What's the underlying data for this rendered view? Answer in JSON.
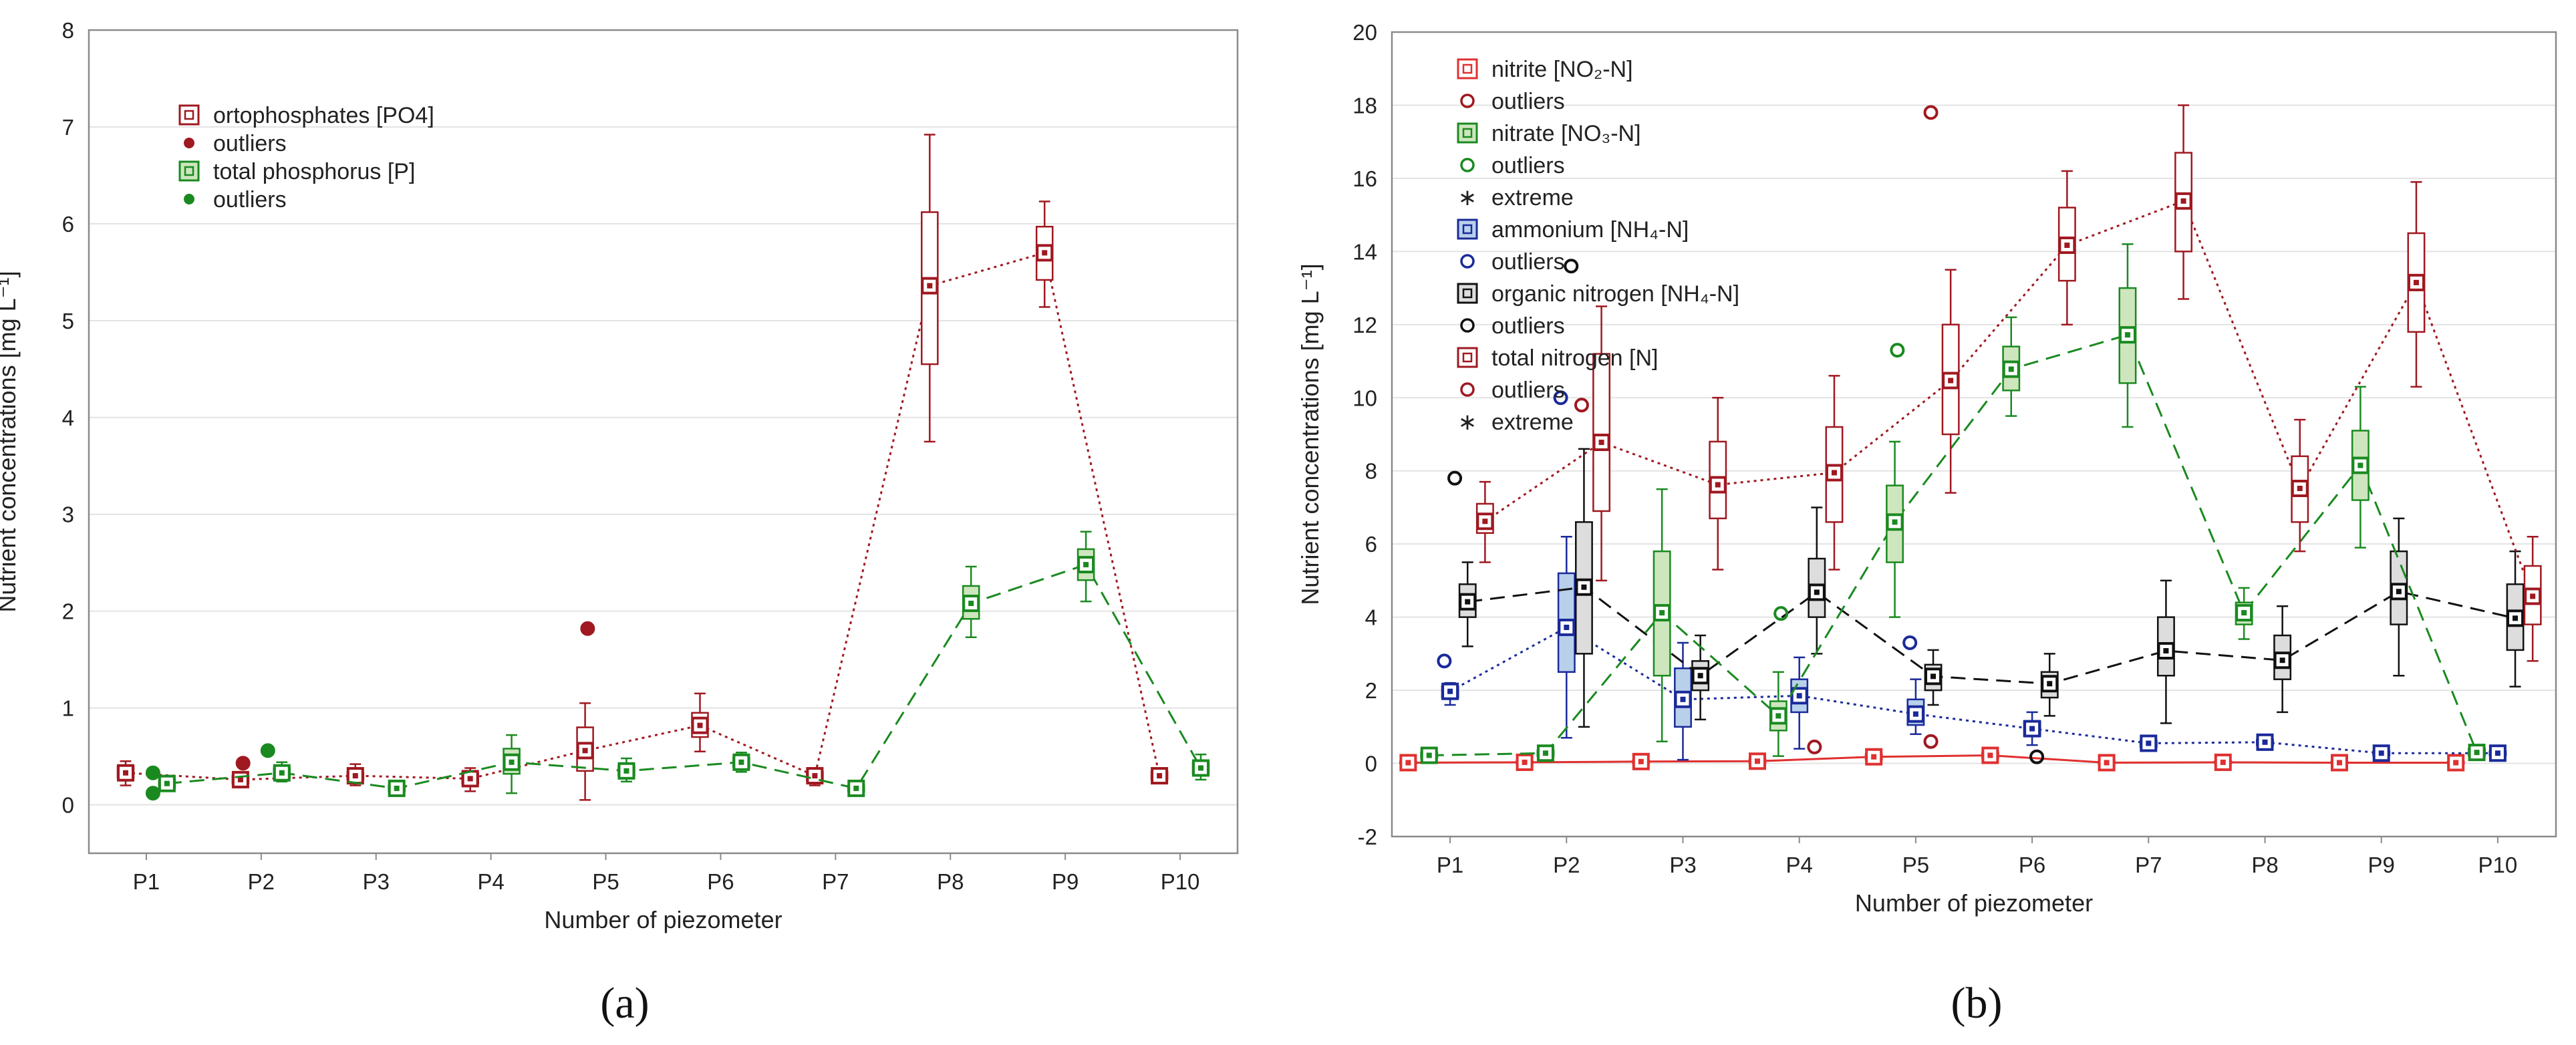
{
  "chart_data": [
    {
      "type": "box",
      "panel_label": "(a)",
      "xlabel": "Number of piezometer",
      "ylabel": "Nutrient concentrations [mg L⁻¹]",
      "ylim": [
        -0.5,
        8
      ],
      "yticks": [
        0,
        1,
        2,
        3,
        4,
        5,
        6,
        7,
        8
      ],
      "categories": [
        "P1",
        "P2",
        "P3",
        "P4",
        "P5",
        "P6",
        "P7",
        "P8",
        "P9",
        "P10"
      ],
      "legend_position": "top-left",
      "series": [
        {
          "name": "ortophosphates [PO4]",
          "outlier_label": "outliers",
          "color": "#a01820",
          "fill": "#ffffff",
          "line": "dotted",
          "offset": -0.18,
          "median": [
            0.33,
            0.26,
            0.3,
            0.27,
            0.56,
            0.82,
            0.3,
            5.36,
            5.7,
            0.3
          ],
          "q1": [
            0.28,
            0.22,
            0.26,
            0.22,
            0.35,
            0.7,
            0.25,
            4.55,
            5.42,
            0.26
          ],
          "q3": [
            0.4,
            0.3,
            0.33,
            0.32,
            0.8,
            0.95,
            0.34,
            6.12,
            5.97,
            0.34
          ],
          "wlo": [
            0.2,
            0.18,
            0.2,
            0.14,
            0.05,
            0.55,
            0.2,
            3.75,
            5.14,
            0.22
          ],
          "whi": [
            0.45,
            0.34,
            0.42,
            0.38,
            1.05,
            1.15,
            0.38,
            6.92,
            6.23,
            0.36
          ],
          "outliers": [
            [
              2,
              0.43
            ],
            [
              5,
              1.82
            ]
          ]
        },
        {
          "name": "total phosphorus [P]",
          "outlier_label": "outliers",
          "color": "#1a8a20",
          "fill": "#cde6bd",
          "line": "dashed",
          "offset": 0.18,
          "median": [
            0.22,
            0.33,
            0.17,
            0.44,
            0.35,
            0.44,
            0.17,
            2.08,
            2.48,
            0.38
          ],
          "q1": [
            0.18,
            0.28,
            0.14,
            0.32,
            0.3,
            0.39,
            0.14,
            1.92,
            2.32,
            0.32
          ],
          "q3": [
            0.26,
            0.38,
            0.2,
            0.58,
            0.4,
            0.49,
            0.2,
            2.26,
            2.64,
            0.44
          ],
          "wlo": [
            0.15,
            0.24,
            0.12,
            0.12,
            0.24,
            0.34,
            0.12,
            1.73,
            2.1,
            0.26
          ],
          "whi": [
            0.3,
            0.44,
            0.22,
            0.72,
            0.48,
            0.54,
            0.22,
            2.46,
            2.82,
            0.52
          ],
          "outliers": [
            [
              1,
              0.33
            ],
            [
              1,
              0.12
            ],
            [
              2,
              0.56
            ]
          ]
        }
      ]
    },
    {
      "type": "box",
      "panel_label": "(b)",
      "xlabel": "Number of piezometer",
      "ylabel": "Nutrient concentrations [mg L⁻¹]",
      "ylim": [
        -2,
        20
      ],
      "yticks": [
        -2,
        0,
        2,
        4,
        6,
        8,
        10,
        12,
        14,
        16,
        18,
        20
      ],
      "categories": [
        "P1",
        "P2",
        "P3",
        "P4",
        "P5",
        "P6",
        "P7",
        "P8",
        "P9",
        "P10"
      ],
      "legend_position": "top-left",
      "legend": [
        {
          "kind": "box",
          "label": "nitrite [NO₂-N]",
          "color": "#e03030",
          "fill": "#ffffff"
        },
        {
          "kind": "circle",
          "label": "outliers",
          "color": "#a01820"
        },
        {
          "kind": "box",
          "label": "nitrate [NO₃-N]",
          "color": "#1a8a20",
          "fill": "#cde6bd"
        },
        {
          "kind": "circle",
          "label": "outliers",
          "color": "#1a8a20"
        },
        {
          "kind": "star",
          "label": "extreme",
          "color": "#1a8a20"
        },
        {
          "kind": "box",
          "label": "ammonium [NH₄-N]",
          "color": "#1a2a9a",
          "fill": "#b8d0ea"
        },
        {
          "kind": "circle",
          "label": "outliers",
          "color": "#1a2a9a"
        },
        {
          "kind": "box",
          "label": "organic nitrogen [NH₄-N]",
          "color": "#111111",
          "fill": "#dddddd"
        },
        {
          "kind": "circle",
          "label": "outliers",
          "color": "#111111"
        },
        {
          "kind": "box",
          "label": "total nitrogen [N]",
          "color": "#a01820",
          "fill": "#ffffff"
        },
        {
          "kind": "circle",
          "label": "outliers",
          "color": "#a01820"
        },
        {
          "kind": "star",
          "label": "extreme",
          "color": "#a01820"
        }
      ],
      "series": [
        {
          "name": "nitrite [NO₂-N]",
          "color": "#e03030",
          "fill": "#ffffff",
          "line": "solid",
          "offset": -0.36,
          "median": [
            0.02,
            0.03,
            0.05,
            0.06,
            0.18,
            0.22,
            0.02,
            0.03,
            0.02,
            0.02
          ],
          "q1": [
            0.0,
            0.0,
            0.01,
            0.02,
            0.1,
            0.15,
            0.0,
            0.0,
            0.0,
            0.0
          ],
          "q3": [
            0.05,
            0.06,
            0.08,
            0.1,
            0.25,
            0.3,
            0.05,
            0.06,
            0.05,
            0.05
          ],
          "wlo": [
            0.0,
            0.0,
            0.0,
            0.0,
            0.05,
            0.1,
            0.0,
            0.0,
            0.0,
            0.0
          ],
          "whi": [
            0.08,
            0.08,
            0.1,
            0.15,
            0.32,
            0.35,
            0.08,
            0.08,
            0.08,
            0.08
          ],
          "outliers": []
        },
        {
          "name": "ammonium [NH₄-N]",
          "color": "#1a2a9a",
          "fill": "#b8d0ea",
          "line": "dotted",
          "offset": 0.0,
          "median": [
            1.97,
            3.72,
            1.75,
            1.85,
            1.35,
            0.95,
            0.55,
            0.58,
            0.28,
            0.28
          ],
          "q1": [
            1.8,
            2.5,
            1.0,
            1.4,
            1.05,
            0.75,
            0.45,
            0.5,
            0.22,
            0.22
          ],
          "q3": [
            2.1,
            5.2,
            2.6,
            2.3,
            1.75,
            1.15,
            0.62,
            0.65,
            0.33,
            0.33
          ],
          "wlo": [
            1.6,
            0.7,
            0.1,
            0.4,
            0.8,
            0.5,
            0.38,
            0.42,
            0.15,
            0.15
          ],
          "whi": [
            2.2,
            6.2,
            3.3,
            2.9,
            2.3,
            1.4,
            0.7,
            0.7,
            0.4,
            0.4
          ],
          "outliers": [
            [
              1,
              2.8
            ],
            [
              2,
              10.0
            ],
            [
              5,
              3.3
            ]
          ]
        },
        {
          "name": "organic nitrogen [NH₄-N]",
          "color": "#111111",
          "fill": "#dddddd",
          "line": "dashed",
          "offset": 0.15,
          "median": [
            4.42,
            4.82,
            2.4,
            4.68,
            2.38,
            2.18,
            3.08,
            2.82,
            4.7,
            3.97
          ],
          "q1": [
            4.0,
            3.0,
            2.0,
            4.0,
            2.0,
            1.8,
            2.4,
            2.3,
            3.8,
            3.1
          ],
          "q3": [
            4.9,
            6.6,
            2.8,
            5.6,
            2.7,
            2.5,
            4.0,
            3.5,
            5.8,
            4.9
          ],
          "wlo": [
            3.2,
            1.0,
            1.2,
            3.0,
            1.6,
            1.3,
            1.1,
            1.4,
            2.4,
            2.1
          ],
          "whi": [
            5.5,
            8.6,
            3.5,
            7.0,
            3.1,
            3.0,
            5.0,
            4.3,
            6.7,
            5.8
          ],
          "outliers": [
            [
              1,
              7.8
            ],
            [
              2,
              13.6
            ],
            [
              6,
              0.18
            ]
          ]
        },
        {
          "name": "nitrate [NO₃-N]",
          "color": "#1a8a20",
          "fill": "#cde6bd",
          "line": "dashed",
          "offset": -0.18,
          "median": [
            0.22,
            0.28,
            4.12,
            1.3,
            6.6,
            10.78,
            11.72,
            4.12,
            8.15,
            0.3
          ],
          "q1": [
            0.15,
            0.2,
            2.4,
            0.9,
            5.5,
            10.2,
            10.4,
            3.8,
            7.2,
            0.22
          ],
          "q3": [
            0.3,
            0.36,
            5.8,
            1.7,
            7.6,
            11.4,
            13.0,
            4.4,
            9.1,
            0.4
          ],
          "wlo": [
            0.1,
            0.15,
            0.6,
            0.2,
            4.0,
            9.5,
            9.2,
            3.4,
            5.9,
            0.15
          ],
          "whi": [
            0.35,
            0.4,
            7.5,
            2.5,
            8.8,
            12.2,
            14.2,
            4.8,
            10.3,
            0.45
          ],
          "outliers": [
            [
              4,
              4.1
            ],
            [
              5,
              11.3
            ]
          ]
        },
        {
          "name": "total nitrogen [N]",
          "color": "#a01820",
          "fill": "#ffffff",
          "line": "dotted",
          "offset": 0.3,
          "median": [
            6.62,
            8.78,
            7.62,
            7.95,
            10.47,
            14.17,
            15.38,
            7.52,
            13.15,
            4.57
          ],
          "q1": [
            6.3,
            6.9,
            6.7,
            6.6,
            9.0,
            13.2,
            14.0,
            6.6,
            11.8,
            3.8
          ],
          "q3": [
            7.1,
            11.2,
            8.8,
            9.2,
            12.0,
            15.2,
            16.7,
            8.4,
            14.5,
            5.4
          ],
          "wlo": [
            5.5,
            5.0,
            5.3,
            5.3,
            7.4,
            12.0,
            12.7,
            5.8,
            10.3,
            2.8
          ],
          "whi": [
            7.7,
            12.5,
            10.0,
            10.6,
            13.5,
            16.2,
            18.0,
            9.4,
            15.9,
            6.2
          ],
          "outliers": [
            [
              2,
              9.8
            ],
            [
              4,
              0.45
            ],
            [
              5,
              17.8
            ],
            [
              5,
              0.6
            ]
          ]
        }
      ]
    }
  ],
  "legend_a": [
    {
      "kind": "box",
      "label": "ortophosphates [PO4]",
      "color": "#a01820",
      "fill": "#ffffff"
    },
    {
      "kind": "dot",
      "label": "outliers",
      "color": "#a01820"
    },
    {
      "kind": "box",
      "label": "total phosphorus [P]",
      "color": "#1a8a20",
      "fill": "#cde6bd"
    },
    {
      "kind": "dot",
      "label": "outliers",
      "color": "#1a8a20"
    }
  ]
}
